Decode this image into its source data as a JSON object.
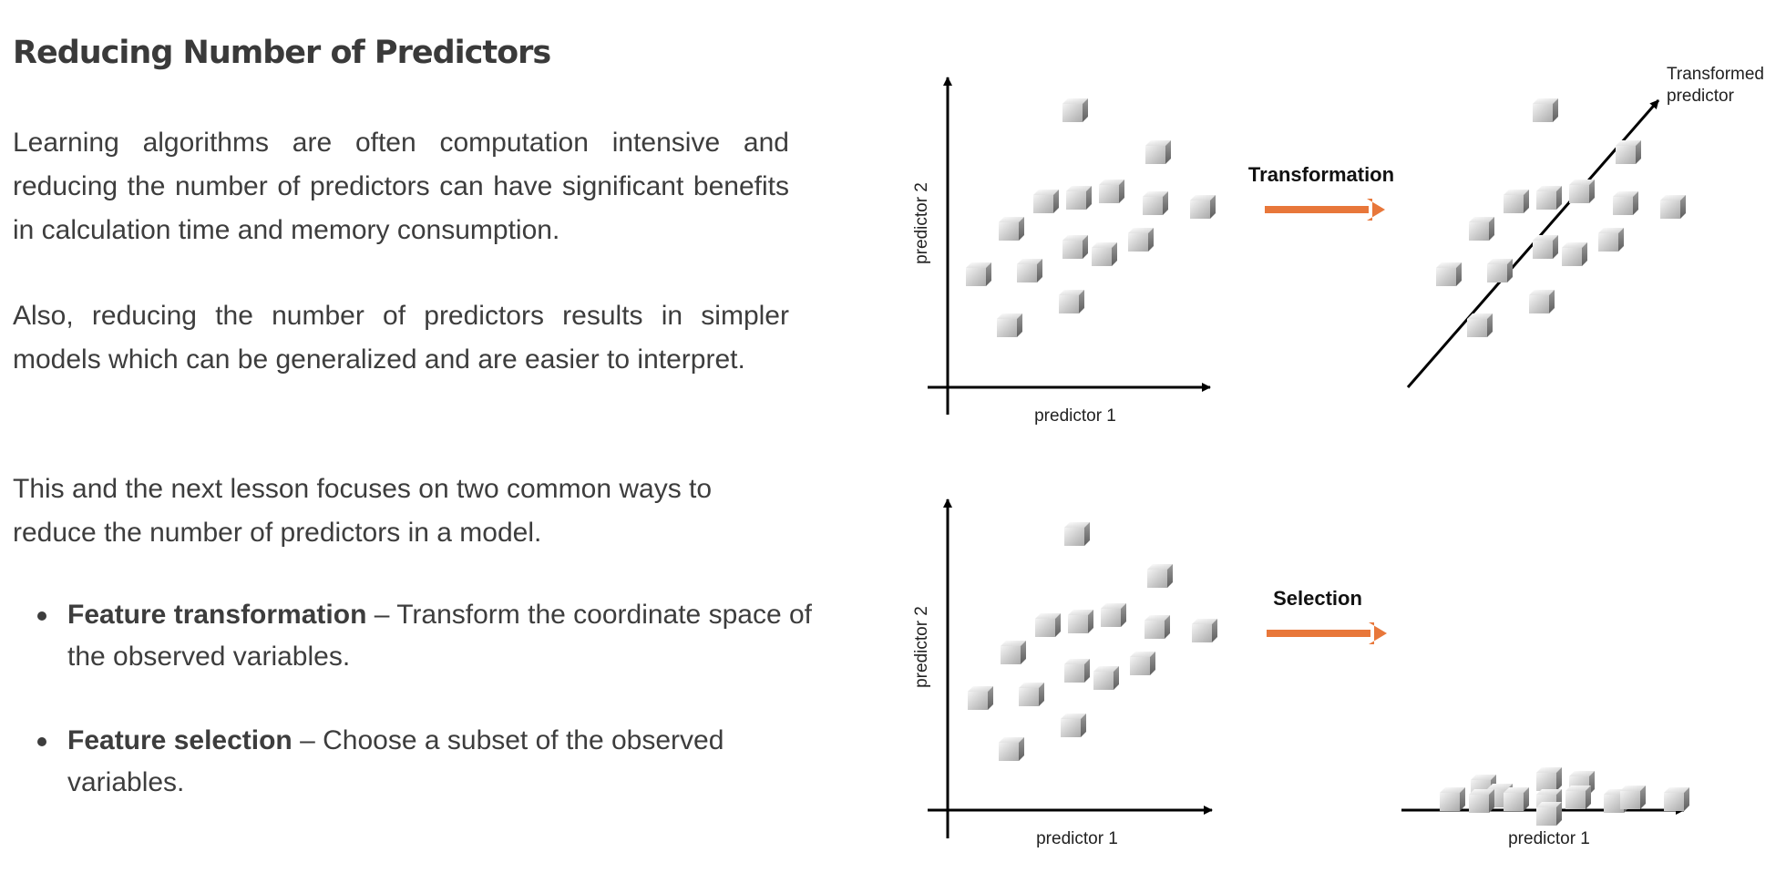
{
  "title": "Reducing Number of Predictors",
  "paragraphs": [
    "Learning algorithms are often computation intensive and reducing the number of predictors can have significant benefits in calculation time and memory consumption.",
    "Also, reducing the number of predictors results in simpler models which can be generalized and are easier to interpret.",
    "This and the next lesson focuses on two common ways to reduce the number of predictors in a model."
  ],
  "bullets": [
    {
      "term": "Feature transformation",
      "text": " – Transform the coordinate space of the observed variables."
    },
    {
      "term": "Feature selection",
      "text": " – Choose a subset of the observed variables."
    }
  ],
  "diagram": {
    "top": {
      "x_label": "predictor 1",
      "y_label": "predictor 2",
      "arrow_label": "Transformation",
      "transformed_axis_label": [
        "Transformed",
        "predictor"
      ]
    },
    "bottom": {
      "x_label": "predictor 1",
      "y_label": "predictor 2",
      "arrow_label": "Selection",
      "selected_axis_label": "predictor 1"
    },
    "colors": {
      "arrow": "#e8773a",
      "axis": "#000000",
      "cube_light": "#f2f2f2",
      "cube_dark": "#7a7a7a"
    },
    "icon": "cube-icon"
  }
}
